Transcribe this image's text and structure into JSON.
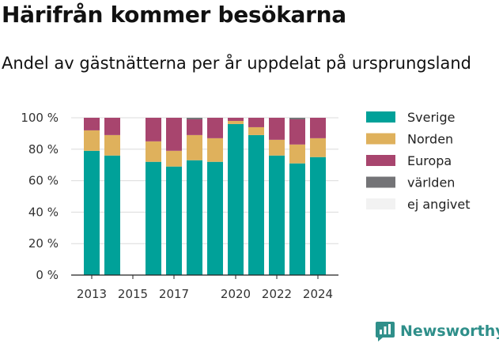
{
  "title": "Härifrån kommer besökarna",
  "subtitle": "Andel av gästnätterna per år uppdelat på ursprungsland",
  "brand": "Newsworthy",
  "colors": {
    "Sverige": "#00a199",
    "Norden": "#dfb15c",
    "Europa": "#a8456e",
    "världen": "#747477",
    "ej angivet": "#f2f2f2",
    "brand": "#2f8f8a"
  },
  "chart_data": {
    "type": "bar",
    "stacked": true,
    "categories": [
      "2013",
      "2014",
      "2015",
      "2016",
      "2017",
      "2018",
      "2019",
      "2020",
      "2021",
      "2022",
      "2023",
      "2024"
    ],
    "x_tick_labels": [
      "2013",
      "2015",
      "2017",
      "2020",
      "2022",
      "2024"
    ],
    "series": [
      {
        "name": "Sverige",
        "values": [
          79,
          76,
          null,
          72,
          69,
          73,
          72,
          96,
          89,
          76,
          71,
          75
        ]
      },
      {
        "name": "Norden",
        "values": [
          13,
          13,
          null,
          13,
          10,
          16,
          15,
          2,
          5,
          10,
          12,
          12
        ]
      },
      {
        "name": "Europa",
        "values": [
          8,
          11,
          null,
          15,
          21,
          10,
          13,
          2,
          6,
          14,
          16,
          13
        ]
      },
      {
        "name": "världen",
        "values": [
          0,
          0,
          null,
          0,
          0,
          1,
          0,
          0,
          0,
          0,
          1,
          0
        ]
      },
      {
        "name": "ej angivet",
        "values": [
          0,
          0,
          null,
          0,
          0,
          0,
          0,
          0,
          0,
          0,
          0,
          0
        ]
      }
    ],
    "ylim": [
      0,
      100
    ],
    "yticks": [
      0,
      20,
      40,
      60,
      80,
      100
    ],
    "ytick_suffix": " %",
    "grid": true,
    "legend_position": "right"
  }
}
